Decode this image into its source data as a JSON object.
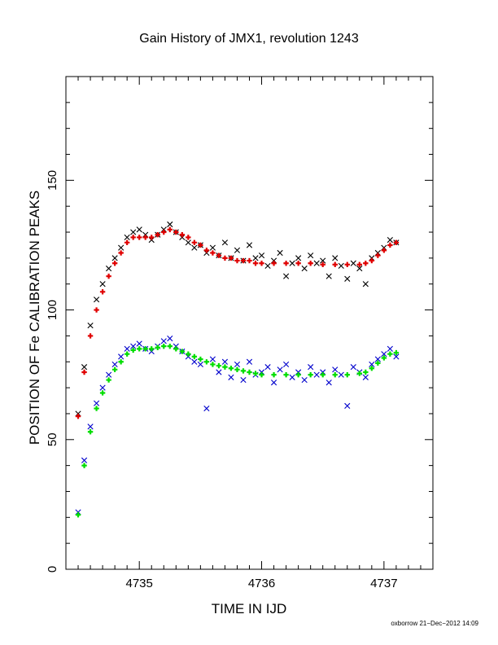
{
  "chart_data": {
    "type": "scatter",
    "title": "Gain History of JMX1, revolution 1243",
    "xlabel": "TIME IN IJD",
    "ylabel": "POSITION OF Fe CALIBRATION PEAKS",
    "xlim": [
      4734.4,
      4737.4
    ],
    "ylim": [
      0,
      190
    ],
    "xticks": [
      4735,
      4736,
      4737
    ],
    "yticks": [
      0,
      50,
      100,
      150
    ],
    "grid": false,
    "legend": "none",
    "series": [
      {
        "marker": "x",
        "color": "#000000",
        "x": [
          4734.5,
          4734.55,
          4734.6,
          4734.65,
          4734.7,
          4734.75,
          4734.8,
          4734.85,
          4734.9,
          4734.95,
          4735.0,
          4735.05,
          4735.1,
          4735.15,
          4735.2,
          4735.25,
          4735.3,
          4735.35,
          4735.4,
          4735.45,
          4735.5,
          4735.55,
          4735.6,
          4735.65,
          4735.7,
          4735.75,
          4735.8,
          4735.85,
          4735.9,
          4735.95,
          4736.0,
          4736.05,
          4736.1,
          4736.15,
          4736.2,
          4736.25,
          4736.3,
          4736.35,
          4736.4,
          4736.45,
          4736.5,
          4736.55,
          4736.6,
          4736.65,
          4736.7,
          4736.75,
          4736.8,
          4736.85,
          4736.9,
          4736.95,
          4737.0,
          4737.05,
          4737.1
        ],
        "y": [
          60,
          78,
          94,
          104,
          110,
          116,
          120,
          124,
          128,
          130,
          131,
          129,
          127,
          129,
          131,
          133,
          130,
          128,
          126,
          124,
          125,
          122,
          124,
          121,
          126,
          120,
          123,
          119,
          125,
          120,
          121,
          117,
          119,
          122,
          113,
          118,
          120,
          116,
          121,
          118,
          119,
          113,
          120,
          117,
          112,
          118,
          116,
          110,
          120,
          122,
          124,
          127,
          126
        ]
      },
      {
        "marker": "x",
        "color": "#0000cc",
        "x": [
          4734.5,
          4734.55,
          4734.6,
          4734.65,
          4734.7,
          4734.75,
          4734.8,
          4734.85,
          4734.9,
          4734.95,
          4735.0,
          4735.05,
          4735.1,
          4735.15,
          4735.2,
          4735.25,
          4735.3,
          4735.35,
          4735.4,
          4735.45,
          4735.5,
          4735.55,
          4735.6,
          4735.65,
          4735.7,
          4735.75,
          4735.8,
          4735.85,
          4735.9,
          4735.95,
          4736.0,
          4736.05,
          4736.1,
          4736.15,
          4736.2,
          4736.25,
          4736.3,
          4736.35,
          4736.4,
          4736.45,
          4736.5,
          4736.55,
          4736.6,
          4736.65,
          4736.7,
          4736.75,
          4736.8,
          4736.85,
          4736.9,
          4736.95,
          4737.0,
          4737.05,
          4737.1
        ],
        "y": [
          22,
          42,
          55,
          64,
          70,
          75,
          79,
          82,
          85,
          86,
          87,
          85,
          84,
          86,
          88,
          89,
          86,
          84,
          82,
          80,
          79,
          62,
          81,
          76,
          80,
          74,
          79,
          73,
          80,
          75,
          76,
          78,
          72,
          77,
          79,
          74,
          76,
          73,
          78,
          75,
          76,
          72,
          77,
          75,
          63,
          78,
          76,
          74,
          79,
          81,
          83,
          85,
          82
        ]
      },
      {
        "marker": "+",
        "color": "#e00000",
        "x": [
          4734.5,
          4734.55,
          4734.6,
          4734.65,
          4734.7,
          4734.75,
          4734.8,
          4734.85,
          4734.9,
          4734.95,
          4735.0,
          4735.05,
          4735.1,
          4735.15,
          4735.2,
          4735.25,
          4735.3,
          4735.35,
          4735.4,
          4735.45,
          4735.5,
          4735.55,
          4735.6,
          4735.65,
          4735.7,
          4735.75,
          4735.8,
          4735.85,
          4735.9,
          4735.95,
          4736.0,
          4736.1,
          4736.2,
          4736.3,
          4736.4,
          4736.5,
          4736.6,
          4736.7,
          4736.8,
          4736.85,
          4736.9,
          4736.95,
          4737.0,
          4737.05,
          4737.1
        ],
        "y": [
          59,
          76,
          90,
          100,
          107,
          113,
          118,
          122,
          126,
          128,
          128,
          128,
          128,
          129,
          130,
          131,
          130,
          129,
          128,
          126,
          125,
          123,
          122,
          121,
          120,
          120,
          119,
          119,
          119,
          118,
          118,
          118,
          118,
          118,
          118,
          117.5,
          117.5,
          117.5,
          117.5,
          118,
          119,
          121,
          123,
          125,
          126
        ]
      },
      {
        "marker": "+",
        "color": "#00dd00",
        "x": [
          4734.5,
          4734.55,
          4734.6,
          4734.65,
          4734.7,
          4734.75,
          4734.8,
          4734.85,
          4734.9,
          4734.95,
          4735.0,
          4735.05,
          4735.1,
          4735.15,
          4735.2,
          4735.25,
          4735.3,
          4735.35,
          4735.4,
          4735.45,
          4735.5,
          4735.55,
          4735.6,
          4735.65,
          4735.7,
          4735.75,
          4735.8,
          4735.85,
          4735.9,
          4735.95,
          4736.0,
          4736.1,
          4736.2,
          4736.3,
          4736.4,
          4736.5,
          4736.6,
          4736.7,
          4736.8,
          4736.85,
          4736.9,
          4736.95,
          4737.0,
          4737.05,
          4737.1
        ],
        "y": [
          21,
          40,
          53,
          62,
          68,
          73,
          77,
          80,
          83,
          84.5,
          85,
          85,
          85,
          85.5,
          86,
          86,
          85,
          84,
          83,
          82,
          81,
          80,
          79,
          78.5,
          78,
          77.5,
          77,
          76.5,
          76,
          75.5,
          75,
          75,
          75,
          75,
          75,
          75,
          75,
          75,
          75.5,
          76,
          77.5,
          79.5,
          81.5,
          83,
          83.5
        ]
      }
    ]
  },
  "footer": "oxborrow 21−Dec−2012 14:09"
}
